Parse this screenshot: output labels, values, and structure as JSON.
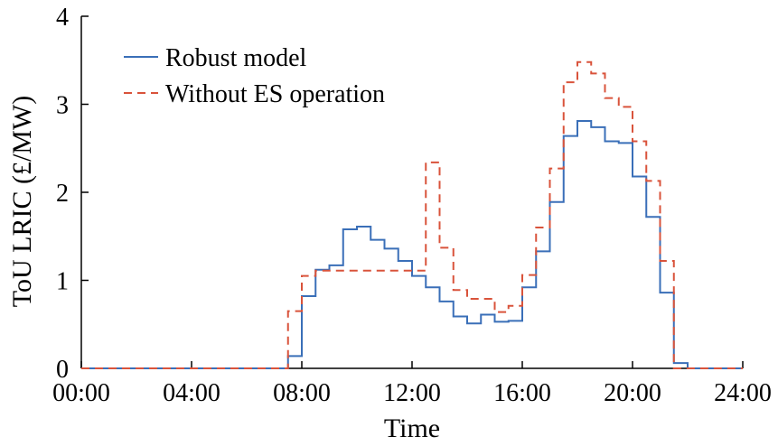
{
  "chart_data": {
    "type": "line",
    "step": true,
    "xlabel": "Time",
    "ylabel": "ToU LRIC (£/MW)",
    "x_tick_labels": [
      "00:00",
      "04:00",
      "08:00",
      "12:00",
      "16:00",
      "20:00",
      "24:00"
    ],
    "x_ticks_hours": [
      0,
      4,
      8,
      12,
      16,
      20,
      24
    ],
    "y_ticks": [
      0,
      1,
      2,
      3,
      4
    ],
    "xlim": [
      0,
      24
    ],
    "ylim": [
      0,
      4
    ],
    "legend_position": "top-left",
    "grid": false,
    "x_interval_hours": 0.5,
    "series": [
      {
        "name": "Robust model",
        "color": "#3a6fb8",
        "style": "solid",
        "values": [
          0,
          0,
          0,
          0,
          0,
          0,
          0,
          0,
          0,
          0,
          0,
          0,
          0,
          0,
          0,
          0.14,
          0.82,
          1.12,
          1.17,
          1.58,
          1.61,
          1.46,
          1.36,
          1.22,
          1.05,
          0.92,
          0.76,
          0.59,
          0.51,
          0.61,
          0.53,
          0.54,
          0.92,
          1.33,
          1.89,
          2.64,
          2.81,
          2.74,
          2.58,
          2.56,
          2.18,
          1.72,
          0.86,
          0.06,
          0,
          0,
          0,
          0
        ]
      },
      {
        "name": "Without ES operation",
        "color": "#d9533b",
        "style": "dashed",
        "values": [
          0,
          0,
          0,
          0,
          0,
          0,
          0,
          0,
          0,
          0,
          0,
          0,
          0,
          0,
          0,
          0.65,
          1.05,
          1.11,
          1.11,
          1.11,
          1.11,
          1.11,
          1.11,
          1.11,
          1.11,
          2.34,
          1.37,
          0.89,
          0.79,
          0.79,
          0.64,
          0.71,
          1.06,
          1.6,
          2.27,
          3.25,
          3.48,
          3.35,
          3.07,
          2.97,
          2.58,
          2.13,
          1.22,
          0,
          0,
          0,
          0,
          0
        ]
      }
    ]
  }
}
